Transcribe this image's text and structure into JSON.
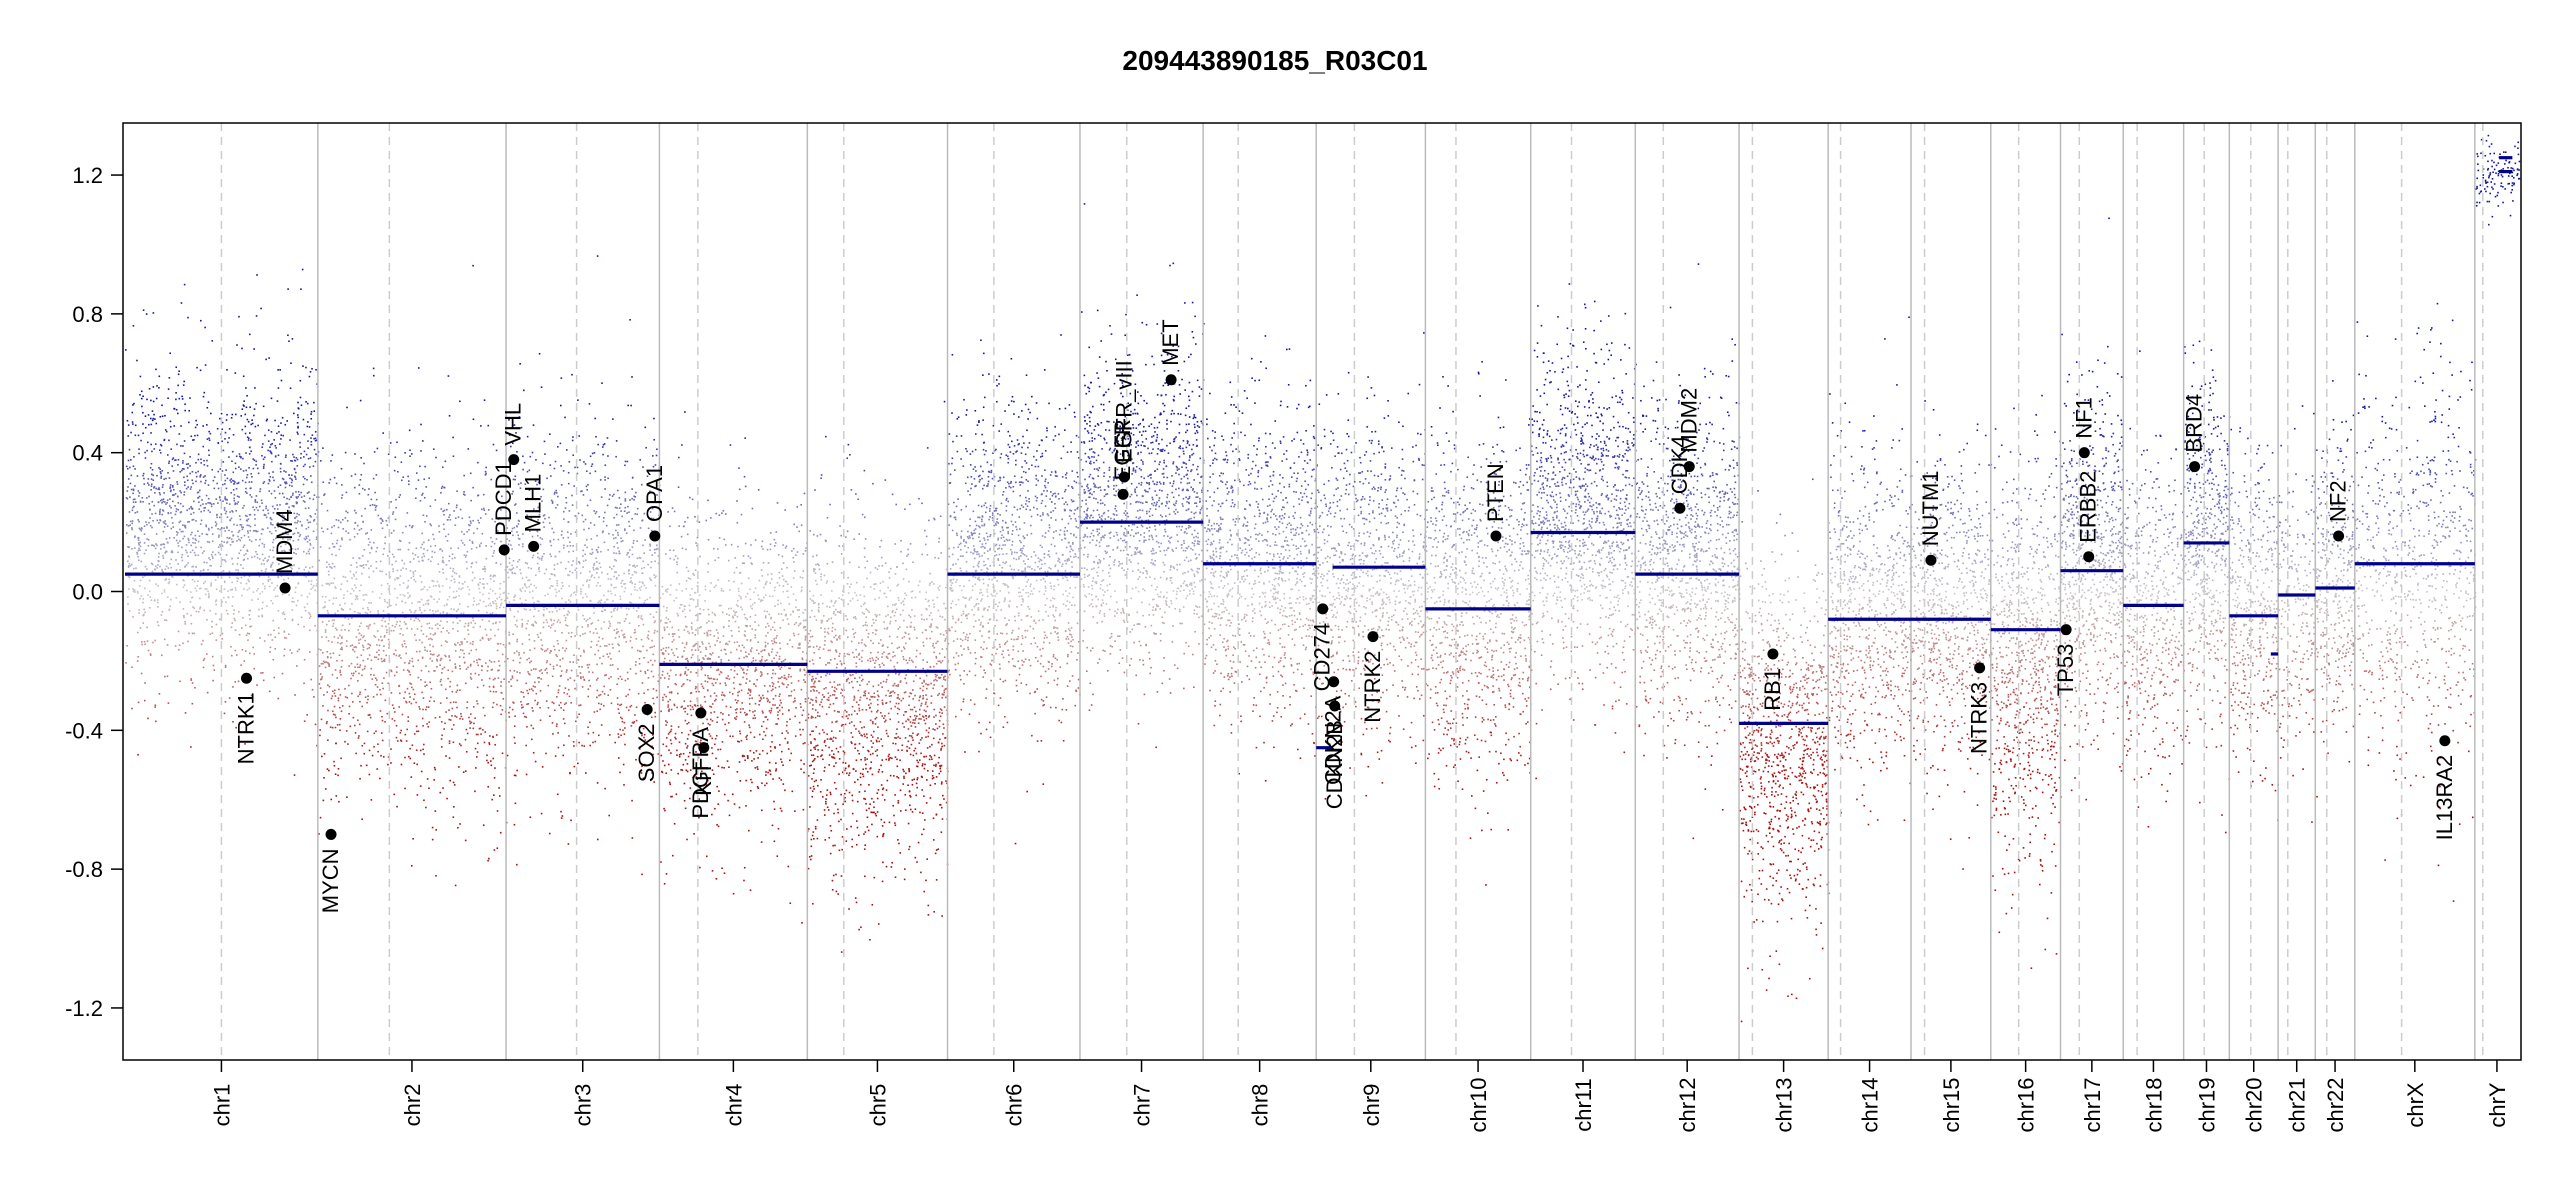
{
  "chart_data": {
    "type": "scatter",
    "title": "209443890185_R03C01",
    "xlabel": "",
    "ylabel": "",
    "ylim": [
      -1.35,
      1.35
    ],
    "y_ticks": [
      "-1.2",
      "-0.8",
      "-0.4",
      "0.0",
      "0.4",
      "0.8",
      "1.2"
    ],
    "y_tick_values": [
      -1.2,
      -0.8,
      -0.4,
      0.0,
      0.4,
      0.8,
      1.2
    ],
    "grid": false,
    "colors": {
      "gain": "#1a1aaa",
      "neutral": "#bbbbbb",
      "loss": "#aa1111",
      "segment": "#00008b",
      "gene": "#000000",
      "boundary": "#bbbbbb"
    },
    "chromosomes": [
      {
        "name": "chr1",
        "length": 249,
        "centromere": 0.5
      },
      {
        "name": "chr2",
        "length": 243,
        "centromere": 0.38
      },
      {
        "name": "chr3",
        "length": 198,
        "centromere": 0.46
      },
      {
        "name": "chr4",
        "length": 191,
        "centromere": 0.26
      },
      {
        "name": "chr5",
        "length": 181,
        "centromere": 0.26
      },
      {
        "name": "chr6",
        "length": 171,
        "centromere": 0.35
      },
      {
        "name": "chr7",
        "length": 159,
        "centromere": 0.38
      },
      {
        "name": "chr8",
        "length": 146,
        "centromere": 0.31
      },
      {
        "name": "chr9",
        "length": 141,
        "centromere": 0.35
      },
      {
        "name": "chr10",
        "length": 136,
        "centromere": 0.29
      },
      {
        "name": "chr11",
        "length": 135,
        "centromere": 0.39
      },
      {
        "name": "chr12",
        "length": 134,
        "centromere": 0.27
      },
      {
        "name": "chr13",
        "length": 115,
        "centromere": 0.15
      },
      {
        "name": "chr14",
        "length": 107,
        "centromere": 0.15
      },
      {
        "name": "chr15",
        "length": 103,
        "centromere": 0.17
      },
      {
        "name": "chr16",
        "length": 90,
        "centromere": 0.4
      },
      {
        "name": "chr17",
        "length": 81,
        "centromere": 0.3
      },
      {
        "name": "chr18",
        "length": 78,
        "centromere": 0.23
      },
      {
        "name": "chr19",
        "length": 59,
        "centromere": 0.45
      },
      {
        "name": "chr20",
        "length": 63,
        "centromere": 0.44
      },
      {
        "name": "chr21",
        "length": 48,
        "centromere": 0.26
      },
      {
        "name": "chr22",
        "length": 51,
        "centromere": 0.29
      },
      {
        "name": "chrX",
        "length": 155,
        "centromere": 0.39
      },
      {
        "name": "chrY",
        "length": 57,
        "centromere": 0.18
      }
    ],
    "segments": [
      {
        "chr": "chr1",
        "value": 0.05
      },
      {
        "chr": "chr2",
        "value": -0.07
      },
      {
        "chr": "chr3",
        "value": -0.04
      },
      {
        "chr": "chr4",
        "value": -0.21
      },
      {
        "chr": "chr5",
        "value": -0.23
      },
      {
        "chr": "chr6",
        "value": 0.05
      },
      {
        "chr": "chr7",
        "value": 0.2
      },
      {
        "chr": "chr8",
        "value": 0.08
      },
      {
        "chr": "chr9",
        "value": 0.07,
        "start": 0.15,
        "end": 1.0
      },
      {
        "chr": "chr9",
        "value": -0.45,
        "start": 0.0,
        "end": 0.15
      },
      {
        "chr": "chr10",
        "value": -0.05
      },
      {
        "chr": "chr11",
        "value": 0.17
      },
      {
        "chr": "chr12",
        "value": 0.05
      },
      {
        "chr": "chr13",
        "value": -0.38
      },
      {
        "chr": "chr14",
        "value": -0.08
      },
      {
        "chr": "chr15",
        "value": -0.08
      },
      {
        "chr": "chr16",
        "value": -0.11
      },
      {
        "chr": "chr17",
        "value": 0.06
      },
      {
        "chr": "chr18",
        "value": -0.04
      },
      {
        "chr": "chr19",
        "value": 0.14
      },
      {
        "chr": "chr20",
        "value": -0.07
      },
      {
        "chr": "chr20",
        "value": -0.18,
        "start": 0.85,
        "end": 1.0
      },
      {
        "chr": "chr21",
        "value": -0.01
      },
      {
        "chr": "chr22",
        "value": 0.01
      },
      {
        "chr": "chrX",
        "value": 0.08
      },
      {
        "chr": "chrY",
        "value": 1.21,
        "start": 0.55,
        "end": 0.85
      },
      {
        "chr": "chrY",
        "value": 1.25,
        "start": 0.55,
        "end": 0.85
      }
    ],
    "profile": [
      {
        "chr": "chr1",
        "mean": 0.2,
        "sd": 0.22,
        "density": 1.0
      },
      {
        "chr": "chr2",
        "mean": -0.1,
        "sd": 0.25,
        "density": 0.9
      },
      {
        "chr": "chr3",
        "mean": -0.02,
        "sd": 0.25,
        "density": 0.9
      },
      {
        "chr": "chr4",
        "mean": -0.22,
        "sd": 0.22,
        "density": 0.9
      },
      {
        "chr": "chr5",
        "mean": -0.3,
        "sd": 0.25,
        "density": 1.1
      },
      {
        "chr": "chr6",
        "mean": 0.1,
        "sd": 0.22,
        "density": 1.0
      },
      {
        "chr": "chr7",
        "mean": 0.25,
        "sd": 0.22,
        "density": 1.1
      },
      {
        "chr": "chr8",
        "mean": 0.08,
        "sd": 0.22,
        "density": 1.0
      },
      {
        "chr": "chr9",
        "mean": 0.05,
        "sd": 0.22,
        "density": 0.9
      },
      {
        "chr": "chr10",
        "mean": -0.05,
        "sd": 0.24,
        "density": 1.0
      },
      {
        "chr": "chr11",
        "mean": 0.22,
        "sd": 0.22,
        "density": 1.2
      },
      {
        "chr": "chr12",
        "mean": 0.08,
        "sd": 0.22,
        "density": 1.1
      },
      {
        "chr": "chr13",
        "mean": -0.45,
        "sd": 0.25,
        "density": 1.2
      },
      {
        "chr": "chr14",
        "mean": -0.05,
        "sd": 0.22,
        "density": 1.0
      },
      {
        "chr": "chr15",
        "mean": -0.05,
        "sd": 0.22,
        "density": 1.0
      },
      {
        "chr": "chr16",
        "mean": -0.2,
        "sd": 0.28,
        "density": 1.3
      },
      {
        "chr": "chr17",
        "mean": 0.08,
        "sd": 0.24,
        "density": 1.3
      },
      {
        "chr": "chr18",
        "mean": -0.05,
        "sd": 0.22,
        "density": 0.9
      },
      {
        "chr": "chr19",
        "mean": 0.15,
        "sd": 0.24,
        "density": 1.3
      },
      {
        "chr": "chr20",
        "mean": -0.08,
        "sd": 0.22,
        "density": 1.0
      },
      {
        "chr": "chr21",
        "mean": -0.02,
        "sd": 0.2,
        "density": 0.7
      },
      {
        "chr": "chr22",
        "mean": 0.02,
        "sd": 0.22,
        "density": 1.0
      },
      {
        "chr": "chrX",
        "mean": 0.05,
        "sd": 0.28,
        "density": 0.7
      },
      {
        "chr": "chrY",
        "mean": 1.2,
        "sd": 0.05,
        "density": 0.3
      }
    ],
    "genes": [
      {
        "name": "NTRK1",
        "chr": "chr1",
        "pos": 0.63,
        "value": -0.25,
        "label_side": "below"
      },
      {
        "name": "MDM4",
        "chr": "chr1",
        "pos": 0.83,
        "value": 0.01,
        "label_side": "above"
      },
      {
        "name": "MYCN",
        "chr": "chr2",
        "pos": 0.07,
        "value": -0.7,
        "label_side": "below"
      },
      {
        "name": "PDCD1",
        "chr": "chr2",
        "pos": 0.99,
        "value": 0.12,
        "label_side": "above"
      },
      {
        "name": "VHL",
        "chr": "chr3",
        "pos": 0.05,
        "value": 0.38,
        "label_side": "above"
      },
      {
        "name": "MLH1",
        "chr": "chr3",
        "pos": 0.18,
        "value": 0.13,
        "label_side": "above"
      },
      {
        "name": "SOX2",
        "chr": "chr3",
        "pos": 0.92,
        "value": -0.34,
        "label_side": "below"
      },
      {
        "name": "OPA1",
        "chr": "chr3",
        "pos": 0.97,
        "value": 0.16,
        "label_side": "above"
      },
      {
        "name": "PDGFRA",
        "chr": "chr4",
        "pos": 0.28,
        "value": -0.35,
        "label_side": "below"
      },
      {
        "name": "KIT",
        "chr": "chr4",
        "pos": 0.3,
        "value": -0.45,
        "label_side": "below"
      },
      {
        "name": "EGFR",
        "chr": "chr7",
        "pos": 0.35,
        "value": 0.28,
        "label_side": "above"
      },
      {
        "name": "EGFR_vIII",
        "chr": "chr7",
        "pos": 0.36,
        "value": 0.33,
        "label_side": "above"
      },
      {
        "name": "MET",
        "chr": "chr7",
        "pos": 0.74,
        "value": 0.61,
        "label_side": "above"
      },
      {
        "name": "CD274",
        "chr": "chr9",
        "pos": 0.06,
        "value": -0.05,
        "label_side": "below"
      },
      {
        "name": "CDKN2A",
        "chr": "chr9",
        "pos": 0.16,
        "value": -0.26,
        "label_side": "below"
      },
      {
        "name": "CDKN2B",
        "chr": "chr9",
        "pos": 0.17,
        "value": -0.33,
        "label_side": "below"
      },
      {
        "name": "NTRK2",
        "chr": "chr9",
        "pos": 0.52,
        "value": -0.13,
        "label_side": "below"
      },
      {
        "name": "PTEN",
        "chr": "chr10",
        "pos": 0.67,
        "value": 0.16,
        "label_side": "above"
      },
      {
        "name": "CDK4",
        "chr": "chr12",
        "pos": 0.43,
        "value": 0.24,
        "label_side": "above"
      },
      {
        "name": "MDM2",
        "chr": "chr12",
        "pos": 0.52,
        "value": 0.36,
        "label_side": "above"
      },
      {
        "name": "RB1",
        "chr": "chr13",
        "pos": 0.38,
        "value": -0.18,
        "label_side": "below"
      },
      {
        "name": "NUTM1",
        "chr": "chr15",
        "pos": 0.25,
        "value": 0.09,
        "label_side": "above"
      },
      {
        "name": "NTRK3",
        "chr": "chr15",
        "pos": 0.86,
        "value": -0.22,
        "label_side": "below"
      },
      {
        "name": "TP53",
        "chr": "chr17",
        "pos": 0.09,
        "value": -0.11,
        "label_side": "below"
      },
      {
        "name": "ERBB2",
        "chr": "chr17",
        "pos": 0.45,
        "value": 0.1,
        "label_side": "above"
      },
      {
        "name": "NF1",
        "chr": "chr17",
        "pos": 0.38,
        "value": 0.4,
        "label_side": "above"
      },
      {
        "name": "BRD4",
        "chr": "chr19",
        "pos": 0.24,
        "value": 0.36,
        "label_side": "above"
      },
      {
        "name": "NF2",
        "chr": "chr22",
        "pos": 0.59,
        "value": 0.16,
        "label_side": "above"
      },
      {
        "name": "IL13RA2",
        "chr": "chrX",
        "pos": 0.75,
        "value": -0.43,
        "label_side": "below"
      }
    ]
  }
}
